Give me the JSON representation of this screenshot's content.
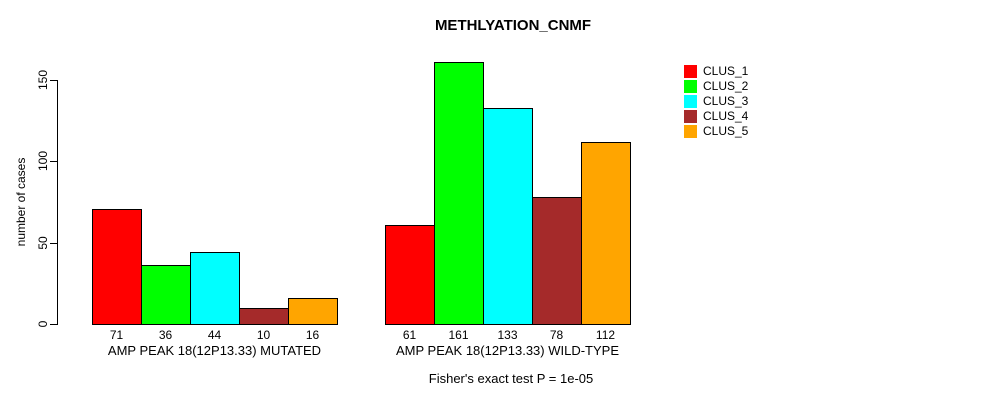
{
  "chart_data": {
    "type": "bar",
    "title": "METHLYATION_CNMF",
    "ylabel": "number of cases",
    "xlabel": "",
    "ylim": [
      0,
      150
    ],
    "yticks": [
      0,
      50,
      100,
      150
    ],
    "grid": false,
    "annotation": "Fisher's exact test P = 1e-05",
    "categories": [
      "AMP PEAK 18(12P13.33) MUTATED",
      "AMP PEAK 18(12P13.33) WILD-TYPE"
    ],
    "series": [
      {
        "name": "CLUS_1",
        "color": "#ff0000",
        "values": [
          71,
          61
        ]
      },
      {
        "name": "CLUS_2",
        "color": "#00ff00",
        "values": [
          36,
          161
        ]
      },
      {
        "name": "CLUS_3",
        "color": "#00ffff",
        "values": [
          44,
          133
        ]
      },
      {
        "name": "CLUS_4",
        "color": "#a52a2a",
        "values": [
          10,
          78
        ]
      },
      {
        "name": "CLUS_5",
        "color": "#ffa500",
        "values": [
          16,
          112
        ]
      }
    ],
    "groups": [
      {
        "label": "AMP PEAK 18(12P13.33) MUTATED",
        "values": [
          71,
          36,
          44,
          10,
          16
        ]
      },
      {
        "label": "AMP PEAK 18(12P13.33) WILD-TYPE",
        "values": [
          61,
          161,
          133,
          78,
          112
        ]
      }
    ],
    "legend": {
      "position": "top-right",
      "entries": [
        {
          "label": "CLUS_1",
          "color": "#ff0000"
        },
        {
          "label": "CLUS_2",
          "color": "#00ff00"
        },
        {
          "label": "CLUS_3",
          "color": "#00ffff"
        },
        {
          "label": "CLUS_4",
          "color": "#a52a2a"
        },
        {
          "label": "CLUS_5",
          "color": "#ffa500"
        }
      ]
    },
    "axis_color": "#000000",
    "bar_border_color": "#000000"
  }
}
